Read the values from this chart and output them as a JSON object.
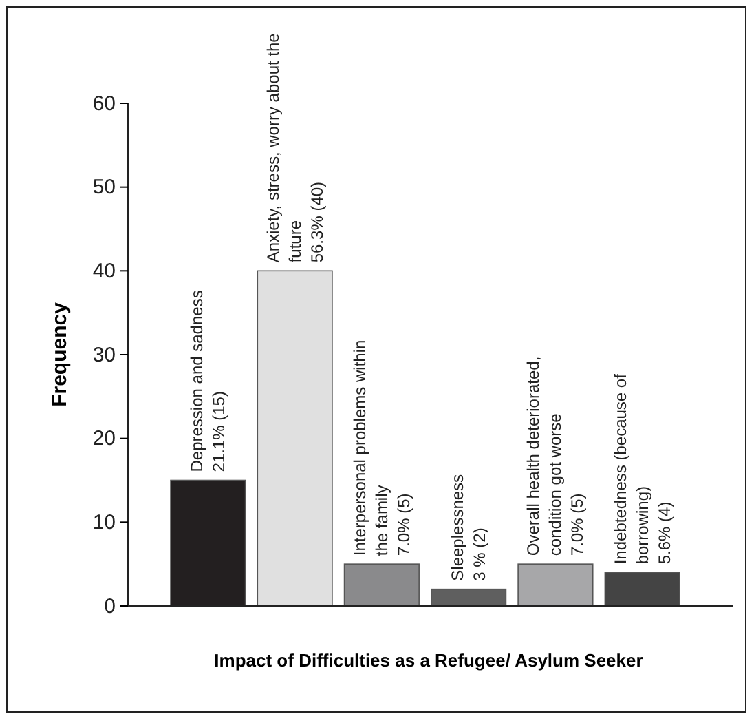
{
  "chart_data": {
    "type": "bar",
    "xlabel": "Impact of Difficulties as a Refugee/ Asylum Seeker",
    "ylabel": "Frequency",
    "categories": [
      "Depression and sadness",
      "Anxiety, stress, worry about the future",
      "Interpersonal problems within the family",
      "Sleeplessness",
      "Overall health deteriorated, condition got worse",
      "Indebtedness (because of borrowing)"
    ],
    "values": [
      15,
      40,
      5,
      2,
      5,
      4
    ],
    "colors": [
      "#231f20",
      "#e0e0e0",
      "#8a8a8c",
      "#5f5f5f",
      "#a7a7a9",
      "#444444"
    ],
    "value_labels": [
      "21.1% (15)",
      "56.3% (40)",
      "7.0% (5)",
      "3 % (2)",
      "7.0% (5)",
      "5.6% (4)"
    ],
    "ylim": [
      0,
      60
    ],
    "yticks": [
      0,
      10,
      20,
      30,
      40,
      50,
      60
    ],
    "grid": false
  }
}
